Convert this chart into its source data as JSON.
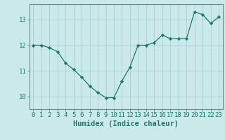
{
  "x": [
    0,
    1,
    2,
    3,
    4,
    5,
    6,
    7,
    8,
    9,
    10,
    11,
    12,
    13,
    14,
    15,
    16,
    17,
    18,
    19,
    20,
    21,
    22,
    23
  ],
  "y": [
    12.0,
    12.0,
    11.9,
    11.75,
    11.3,
    11.05,
    10.75,
    10.4,
    10.15,
    9.95,
    9.95,
    10.6,
    11.15,
    12.0,
    12.0,
    12.1,
    12.4,
    12.25,
    12.25,
    12.25,
    13.3,
    13.2,
    12.85,
    13.1
  ],
  "line_color": "#1a7a6e",
  "marker": "D",
  "marker_size": 2.2,
  "bg_color": "#cce9e9",
  "grid_color": "#aad4d4",
  "axis_color": "#6a8a8a",
  "xlabel": "Humidex (Indice chaleur)",
  "xlabel_fontsize": 7.5,
  "tick_fontsize": 6.5,
  "ylim": [
    9.5,
    13.6
  ],
  "xlim": [
    -0.5,
    23.5
  ],
  "yticks": [
    10,
    11,
    12,
    13
  ],
  "xticks": [
    0,
    1,
    2,
    3,
    4,
    5,
    6,
    7,
    8,
    9,
    10,
    11,
    12,
    13,
    14,
    15,
    16,
    17,
    18,
    19,
    20,
    21,
    22,
    23
  ]
}
